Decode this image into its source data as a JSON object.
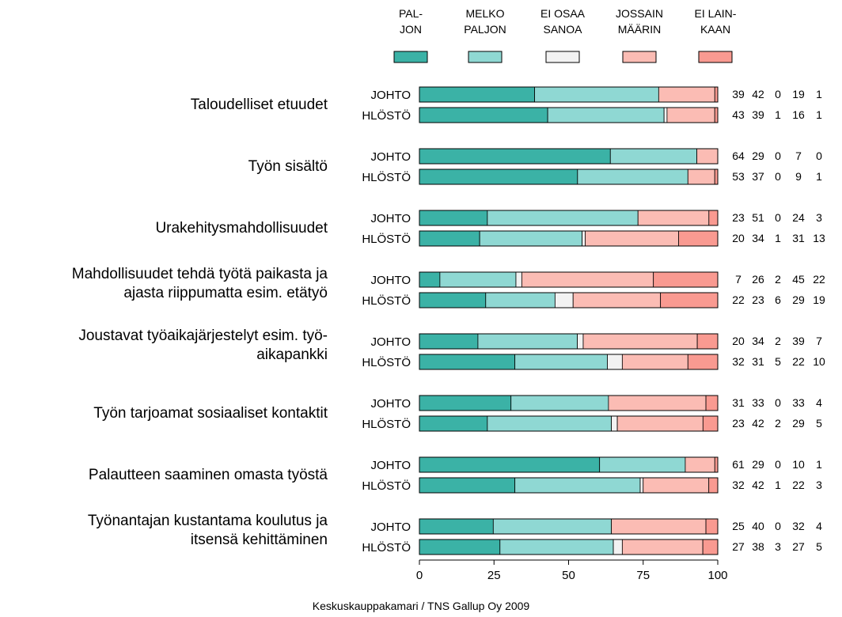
{
  "chart_data": {
    "type": "bar",
    "stacked": true,
    "orientation": "horizontal",
    "xlim": [
      0,
      100
    ],
    "xticks": [
      "0",
      "25",
      "50",
      "75",
      "100"
    ],
    "legend_position": "top",
    "legend": [
      {
        "lines": [
          "PAL-",
          "JON"
        ],
        "color": "#3bb2a6"
      },
      {
        "lines": [
          "MELKO",
          "PALJON"
        ],
        "color": "#8fd8d3"
      },
      {
        "lines": [
          "EI OSAA",
          "SANOA"
        ],
        "color": "#f2f2f2"
      },
      {
        "lines": [
          "JOSSAIN",
          "MÄÄRIN"
        ],
        "color": "#fbbcb4"
      },
      {
        "lines": [
          "EI LAIN-",
          "KAAN"
        ],
        "color": "#f99a91"
      }
    ],
    "groups": [
      "JOHTO",
      "HLÖSTÖ"
    ],
    "categories": [
      {
        "label": [
          "Taloudelliset etuudet"
        ],
        "rows": [
          {
            "group": "JOHTO",
            "values": [
              39,
              42,
              0,
              19,
              1
            ]
          },
          {
            "group": "HLÖSTÖ",
            "values": [
              43,
              39,
              1,
              16,
              1
            ]
          }
        ]
      },
      {
        "label": [
          "Työn sisältö"
        ],
        "rows": [
          {
            "group": "JOHTO",
            "values": [
              64,
              29,
              0,
              7,
              0
            ]
          },
          {
            "group": "HLÖSTÖ",
            "values": [
              53,
              37,
              0,
              9,
              1
            ]
          }
        ]
      },
      {
        "label": [
          "Urakehitysmahdollisuudet"
        ],
        "rows": [
          {
            "group": "JOHTO",
            "values": [
              23,
              51,
              0,
              24,
              3
            ]
          },
          {
            "group": "HLÖSTÖ",
            "values": [
              20,
              34,
              1,
              31,
              13
            ]
          }
        ]
      },
      {
        "label": [
          "Mahdollisuudet tehdä työtä paikasta ja",
          "ajasta riippumatta esim. etätyö"
        ],
        "rows": [
          {
            "group": "JOHTO",
            "values": [
              7,
              26,
              2,
              45,
              22
            ]
          },
          {
            "group": "HLÖSTÖ",
            "values": [
              22,
              23,
              6,
              29,
              19
            ]
          }
        ]
      },
      {
        "label": [
          "Joustavat työaikajärjestelyt esim. työ-",
          "aikapankki"
        ],
        "rows": [
          {
            "group": "JOHTO",
            "values": [
              20,
              34,
              2,
              39,
              7
            ]
          },
          {
            "group": "HLÖSTÖ",
            "values": [
              32,
              31,
              5,
              22,
              10
            ]
          }
        ]
      },
      {
        "label": [
          "Työn tarjoamat sosiaaliset kontaktit"
        ],
        "rows": [
          {
            "group": "JOHTO",
            "values": [
              31,
              33,
              0,
              33,
              4
            ]
          },
          {
            "group": "HLÖSTÖ",
            "values": [
              23,
              42,
              2,
              29,
              5
            ]
          }
        ]
      },
      {
        "label": [
          "Palautteen saaminen omasta työstä"
        ],
        "rows": [
          {
            "group": "JOHTO",
            "values": [
              61,
              29,
              0,
              10,
              1
            ]
          },
          {
            "group": "HLÖSTÖ",
            "values": [
              32,
              42,
              1,
              22,
              3
            ]
          }
        ]
      },
      {
        "label": [
          "Työnantajan kustantama koulutus ja",
          "itsensä kehittäminen"
        ],
        "rows": [
          {
            "group": "JOHTO",
            "values": [
              25,
              40,
              0,
              32,
              4
            ]
          },
          {
            "group": "HLÖSTÖ",
            "values": [
              27,
              38,
              3,
              27,
              5
            ]
          }
        ]
      }
    ]
  },
  "footer": {
    "source": "Keskuskauppakamari / TNS Gallup Oy 2009"
  }
}
